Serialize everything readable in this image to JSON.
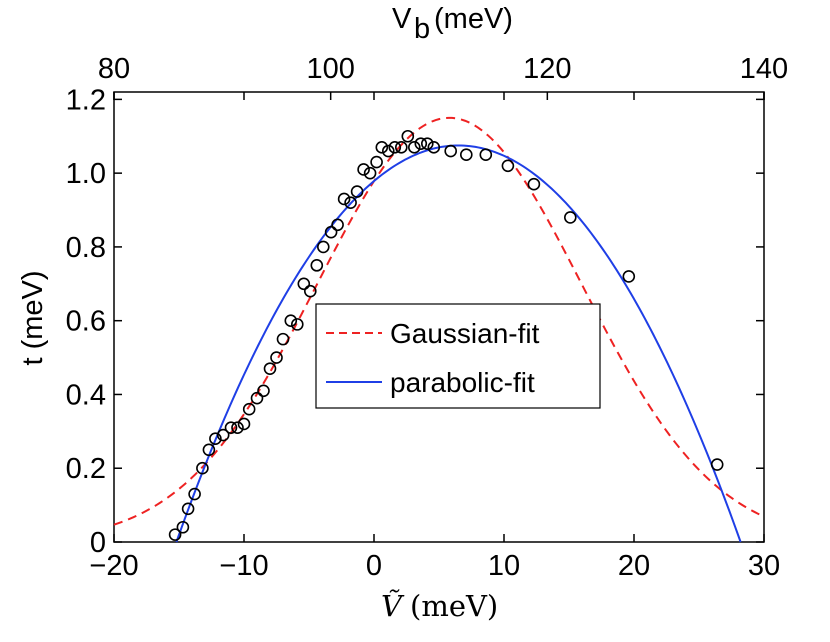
{
  "chart_data": {
    "type": "scatter",
    "xlabel_symbol": "Ṽ",
    "xlabel_unit": "(meV)",
    "ylabel": "t (meV)",
    "top_xlabel_base": "V",
    "top_xlabel_sub": "b",
    "top_xlabel_unit": "(meV)",
    "xlim": [
      -20,
      30
    ],
    "ylim": [
      0,
      1.22
    ],
    "xticks": [
      -20,
      -10,
      0,
      10,
      20,
      30
    ],
    "xtick_labels": [
      "−20",
      "−10",
      "0",
      "10",
      "20",
      "30"
    ],
    "yticks": [
      0,
      0.2,
      0.4,
      0.6,
      0.8,
      1.0,
      1.2
    ],
    "ytick_labels": [
      "0",
      "0.2",
      "0.4",
      "0.6",
      "0.8",
      "1.0",
      "1.2"
    ],
    "top_xticks": [
      80,
      100,
      120,
      140
    ],
    "top_xlim": [
      80,
      140
    ],
    "grid": false,
    "legend_position": "center",
    "series": [
      {
        "name": "",
        "kind": "scatter",
        "marker": "circle",
        "color": "#000000",
        "points": [
          [
            -15.3,
            0.02
          ],
          [
            -14.7,
            0.04
          ],
          [
            -14.3,
            0.09
          ],
          [
            -13.8,
            0.13
          ],
          [
            -13.2,
            0.2
          ],
          [
            -12.7,
            0.25
          ],
          [
            -12.2,
            0.28
          ],
          [
            -11.6,
            0.29
          ],
          [
            -11.0,
            0.31
          ],
          [
            -10.5,
            0.31
          ],
          [
            -10.0,
            0.32
          ],
          [
            -9.6,
            0.36
          ],
          [
            -9.0,
            0.39
          ],
          [
            -8.5,
            0.41
          ],
          [
            -8.0,
            0.47
          ],
          [
            -7.5,
            0.5
          ],
          [
            -7.0,
            0.55
          ],
          [
            -6.4,
            0.6
          ],
          [
            -5.9,
            0.59
          ],
          [
            -5.4,
            0.7
          ],
          [
            -4.9,
            0.68
          ],
          [
            -4.4,
            0.75
          ],
          [
            -3.9,
            0.8
          ],
          [
            -3.3,
            0.84
          ],
          [
            -2.8,
            0.86
          ],
          [
            -2.3,
            0.93
          ],
          [
            -1.8,
            0.92
          ],
          [
            -1.3,
            0.95
          ],
          [
            -0.8,
            1.01
          ],
          [
            -0.3,
            1.0
          ],
          [
            0.2,
            1.03
          ],
          [
            0.6,
            1.07
          ],
          [
            1.1,
            1.06
          ],
          [
            1.6,
            1.07
          ],
          [
            2.1,
            1.07
          ],
          [
            2.6,
            1.1
          ],
          [
            3.1,
            1.07
          ],
          [
            3.6,
            1.08
          ],
          [
            4.1,
            1.08
          ],
          [
            4.6,
            1.07
          ],
          [
            5.9,
            1.06
          ],
          [
            7.1,
            1.05
          ],
          [
            8.6,
            1.05
          ],
          [
            10.3,
            1.02
          ],
          [
            12.3,
            0.97
          ],
          [
            15.1,
            0.88
          ],
          [
            19.6,
            0.72
          ],
          [
            26.4,
            0.21
          ]
        ]
      },
      {
        "name": "Gaussian-fit",
        "kind": "line",
        "style": "dashed",
        "color": "#ee2222",
        "model": "gaussian",
        "amplitude": 1.15,
        "center": 5.8,
        "sigma": 10.2,
        "sample_range": [
          -20,
          30
        ]
      },
      {
        "name": "parabolic-fit",
        "kind": "line",
        "style": "solid",
        "color": "#1f3fe6",
        "model": "parabola",
        "peak": 1.075,
        "center": 6.5,
        "half_width": 21.7,
        "sample_range": [
          -15.2,
          28.2
        ]
      }
    ]
  }
}
